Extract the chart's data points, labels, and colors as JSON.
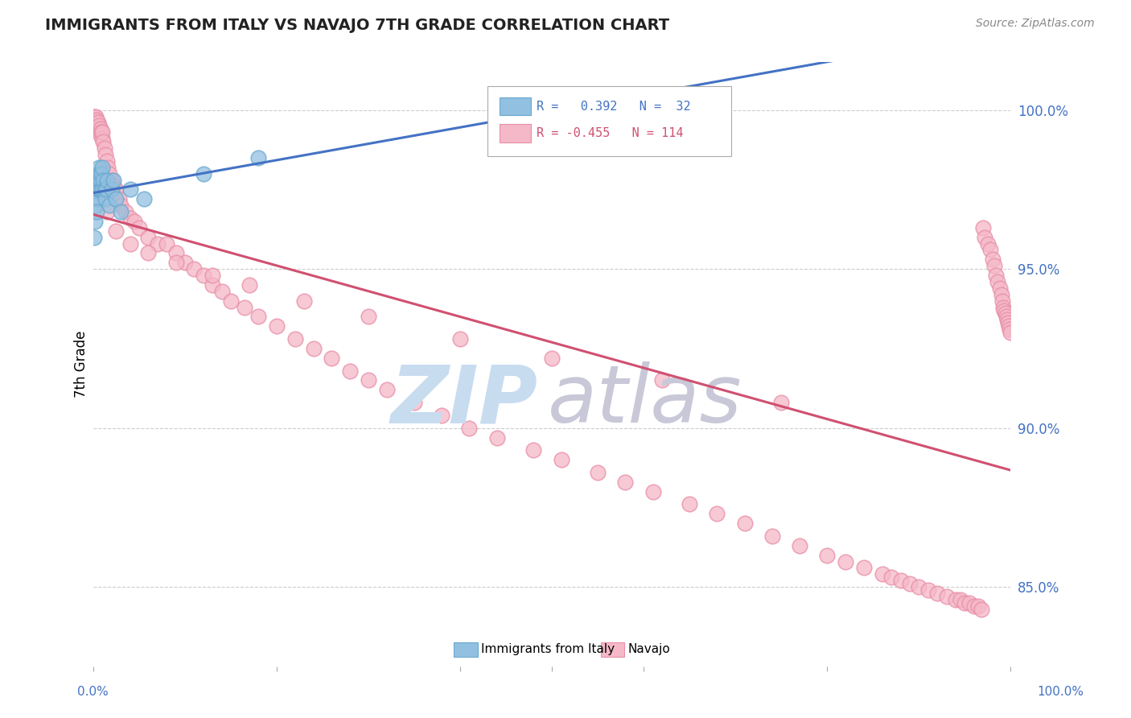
{
  "title": "IMMIGRANTS FROM ITALY VS NAVAJO 7TH GRADE CORRELATION CHART",
  "source": "Source: ZipAtlas.com",
  "ylabel": "7th Grade",
  "ytick_values": [
    0.85,
    0.9,
    0.95,
    1.0
  ],
  "xlim": [
    0.0,
    1.0
  ],
  "ylim": [
    0.825,
    1.015
  ],
  "legend_blue_label": "Immigrants from Italy",
  "legend_pink_label": "Navajo",
  "blue_R": 0.392,
  "blue_N": 32,
  "pink_R": -0.455,
  "pink_N": 114,
  "blue_color": "#92C0E0",
  "pink_color": "#F5B8C8",
  "blue_edge_color": "#6AAAD0",
  "pink_edge_color": "#E890A8",
  "blue_line_color": "#4472C4",
  "pink_line_color": "#D05070",
  "watermark_zip_color": "#C8DCF0",
  "watermark_atlas_color": "#C8C8D8",
  "background_color": "#FFFFFF",
  "grid_color": "#CCCCCC",
  "axis_label_color": "#4472C4",
  "blue_scatter_x": [
    0.001,
    0.002,
    0.003,
    0.003,
    0.004,
    0.004,
    0.005,
    0.005,
    0.005,
    0.006,
    0.006,
    0.007,
    0.007,
    0.008,
    0.008,
    0.009,
    0.01,
    0.01,
    0.011,
    0.012,
    0.013,
    0.014,
    0.015,
    0.018,
    0.02,
    0.022,
    0.025,
    0.03,
    0.04,
    0.055,
    0.12,
    0.18
  ],
  "blue_scatter_y": [
    0.96,
    0.965,
    0.97,
    0.975,
    0.972,
    0.968,
    0.975,
    0.978,
    0.98,
    0.975,
    0.982,
    0.978,
    0.98,
    0.975,
    0.978,
    0.98,
    0.975,
    0.982,
    0.978,
    0.975,
    0.972,
    0.975,
    0.978,
    0.97,
    0.975,
    0.978,
    0.972,
    0.968,
    0.975,
    0.972,
    0.98,
    0.985
  ],
  "pink_scatter_x": [
    0.001,
    0.002,
    0.003,
    0.003,
    0.004,
    0.005,
    0.005,
    0.006,
    0.007,
    0.008,
    0.008,
    0.009,
    0.01,
    0.01,
    0.011,
    0.012,
    0.013,
    0.015,
    0.016,
    0.018,
    0.02,
    0.022,
    0.025,
    0.028,
    0.03,
    0.035,
    0.04,
    0.045,
    0.05,
    0.06,
    0.07,
    0.08,
    0.09,
    0.1,
    0.11,
    0.12,
    0.13,
    0.14,
    0.15,
    0.165,
    0.18,
    0.2,
    0.22,
    0.24,
    0.26,
    0.28,
    0.3,
    0.32,
    0.35,
    0.38,
    0.41,
    0.44,
    0.48,
    0.51,
    0.55,
    0.58,
    0.61,
    0.65,
    0.68,
    0.71,
    0.74,
    0.77,
    0.8,
    0.82,
    0.84,
    0.86,
    0.87,
    0.88,
    0.89,
    0.9,
    0.91,
    0.92,
    0.93,
    0.94,
    0.945,
    0.95,
    0.955,
    0.96,
    0.965,
    0.968,
    0.97,
    0.972,
    0.975,
    0.978,
    0.98,
    0.982,
    0.984,
    0.986,
    0.988,
    0.99,
    0.991,
    0.992,
    0.993,
    0.994,
    0.995,
    0.996,
    0.997,
    0.998,
    0.999,
    1.0,
    0.005,
    0.015,
    0.025,
    0.04,
    0.06,
    0.09,
    0.13,
    0.17,
    0.23,
    0.3,
    0.4,
    0.5,
    0.62,
    0.75
  ],
  "pink_scatter_y": [
    0.998,
    0.997,
    0.998,
    0.996,
    0.997,
    0.996,
    0.994,
    0.995,
    0.993,
    0.994,
    0.992,
    0.993,
    0.991,
    0.993,
    0.99,
    0.988,
    0.986,
    0.984,
    0.982,
    0.98,
    0.978,
    0.976,
    0.975,
    0.972,
    0.97,
    0.968,
    0.966,
    0.965,
    0.963,
    0.96,
    0.958,
    0.958,
    0.955,
    0.952,
    0.95,
    0.948,
    0.945,
    0.943,
    0.94,
    0.938,
    0.935,
    0.932,
    0.928,
    0.925,
    0.922,
    0.918,
    0.915,
    0.912,
    0.908,
    0.904,
    0.9,
    0.897,
    0.893,
    0.89,
    0.886,
    0.883,
    0.88,
    0.876,
    0.873,
    0.87,
    0.866,
    0.863,
    0.86,
    0.858,
    0.856,
    0.854,
    0.853,
    0.852,
    0.851,
    0.85,
    0.849,
    0.848,
    0.847,
    0.846,
    0.846,
    0.845,
    0.845,
    0.844,
    0.844,
    0.843,
    0.963,
    0.96,
    0.958,
    0.956,
    0.953,
    0.951,
    0.948,
    0.946,
    0.944,
    0.942,
    0.94,
    0.938,
    0.937,
    0.936,
    0.935,
    0.934,
    0.933,
    0.932,
    0.931,
    0.93,
    0.972,
    0.968,
    0.962,
    0.958,
    0.955,
    0.952,
    0.948,
    0.945,
    0.94,
    0.935,
    0.928,
    0.922,
    0.915,
    0.908
  ]
}
